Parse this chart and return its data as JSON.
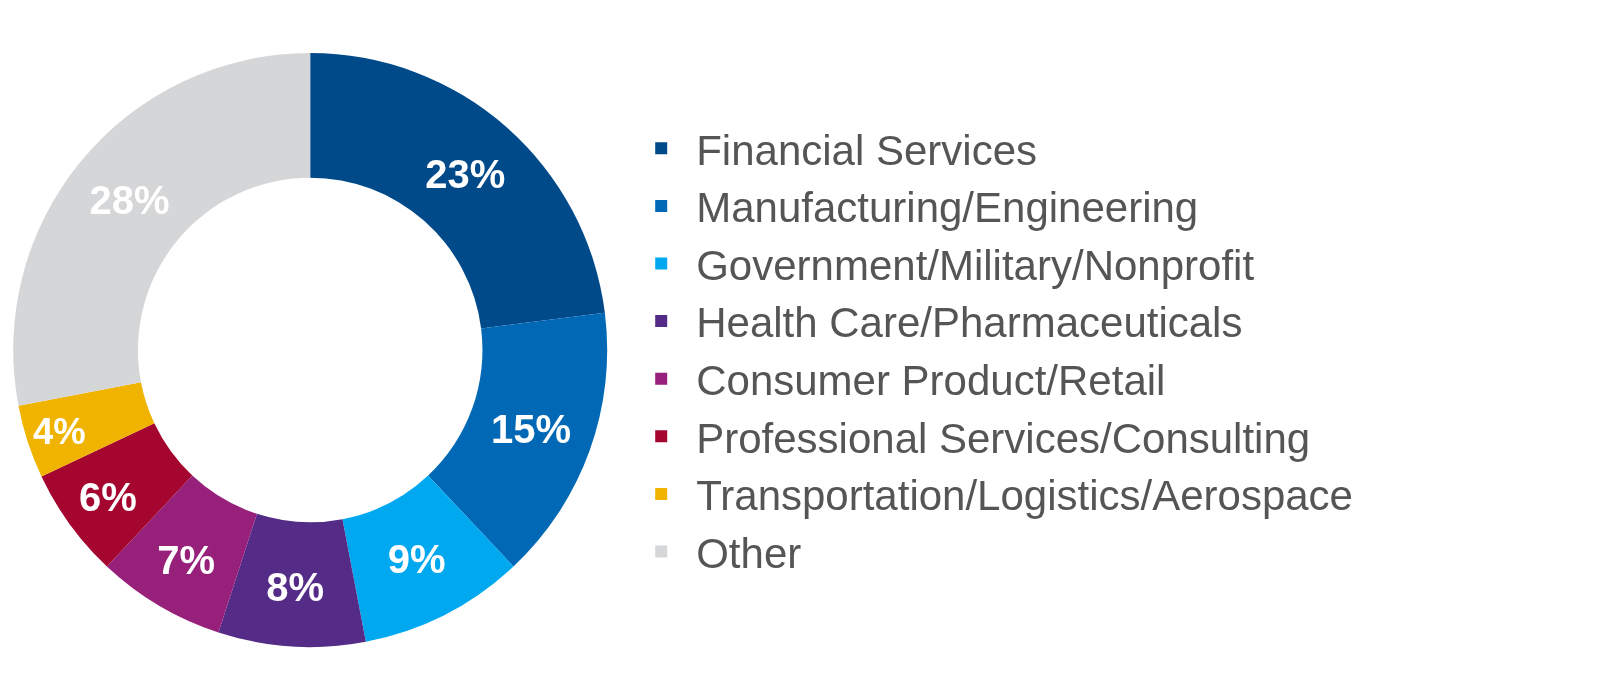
{
  "chart_data": {
    "type": "donut",
    "categories": [
      "Financial Services",
      "Manufacturing/Engineering",
      "Government/Military/Nonprofit",
      "Health Care/Pharmaceuticals",
      "Consumer Product/Retail",
      "Professional Services/Consulting",
      "Transportation/Logistics/Aerospace",
      "Other"
    ],
    "values": [
      23,
      15,
      9,
      8,
      7,
      6,
      4,
      28
    ],
    "colors": [
      "#004a8a",
      "#0068b4",
      "#00a8f0",
      "#552b88",
      "#97207a",
      "#a4062f",
      "#f0b400",
      "#d5d6d8"
    ],
    "value_labels": [
      "23%",
      "15%",
      "9%",
      "8%",
      "7%",
      "6%",
      "4%",
      "28%"
    ],
    "legend": "right"
  }
}
